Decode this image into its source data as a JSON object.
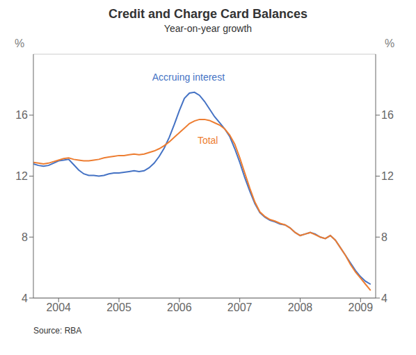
{
  "chart_data": {
    "type": "line",
    "title": "Credit and Charge Card Balances",
    "subtitle": "Year-on-year growth",
    "source": "Source: RBA",
    "ylabel": "%",
    "y2label": "%",
    "xlim": [
      2003.583,
      2009.25
    ],
    "xticks": [
      2004,
      2005,
      2006,
      2007,
      2008,
      2009
    ],
    "ylim": [
      4,
      20
    ],
    "yticks": [
      4,
      8,
      12,
      16
    ],
    "y2lim": [
      4,
      20
    ],
    "y2ticks": [
      4,
      8,
      12,
      16
    ],
    "grid": "y",
    "x": [
      2003.583,
      2003.667,
      2003.75,
      2003.833,
      2003.917,
      2004.0,
      2004.083,
      2004.167,
      2004.25,
      2004.333,
      2004.417,
      2004.5,
      2004.583,
      2004.667,
      2004.75,
      2004.833,
      2004.917,
      2005.0,
      2005.083,
      2005.167,
      2005.25,
      2005.333,
      2005.417,
      2005.5,
      2005.583,
      2005.667,
      2005.75,
      2005.833,
      2005.917,
      2006.0,
      2006.083,
      2006.167,
      2006.25,
      2006.333,
      2006.417,
      2006.5,
      2006.583,
      2006.667,
      2006.75,
      2006.833,
      2006.917,
      2007.0,
      2007.083,
      2007.167,
      2007.25,
      2007.333,
      2007.417,
      2007.5,
      2007.583,
      2007.667,
      2007.75,
      2007.833,
      2007.917,
      2008.0,
      2008.083,
      2008.167,
      2008.25,
      2008.333,
      2008.417,
      2008.5,
      2008.583,
      2008.667,
      2008.75,
      2008.833,
      2008.917,
      2009.0,
      2009.083,
      2009.167
    ],
    "series": [
      {
        "color": "#4472C4",
        "values": [
          12.8,
          12.7,
          12.65,
          12.7,
          12.85,
          13.0,
          13.05,
          13.1,
          12.75,
          12.4,
          12.15,
          12.05,
          12.05,
          12.0,
          12.05,
          12.15,
          12.2,
          12.2,
          12.25,
          12.3,
          12.35,
          12.3,
          12.35,
          12.55,
          12.85,
          13.3,
          13.85,
          14.55,
          15.4,
          16.3,
          17.1,
          17.45,
          17.5,
          17.3,
          16.9,
          16.4,
          15.9,
          15.5,
          15.1,
          14.6,
          13.8,
          12.9,
          11.9,
          11.0,
          10.2,
          9.6,
          9.3,
          9.1,
          9.0,
          8.85,
          8.8,
          8.6,
          8.3,
          8.1,
          8.2,
          8.3,
          8.2,
          8.0,
          7.9,
          8.1,
          7.8,
          7.3,
          6.8,
          6.3,
          5.8,
          5.4,
          5.1,
          4.9
        ]
      },
      {
        "color": "#ED7D31",
        "values": [
          12.9,
          12.85,
          12.8,
          12.85,
          12.95,
          13.05,
          13.15,
          13.2,
          13.1,
          13.05,
          13.0,
          13.0,
          13.05,
          13.1,
          13.2,
          13.25,
          13.3,
          13.35,
          13.35,
          13.4,
          13.45,
          13.4,
          13.45,
          13.55,
          13.65,
          13.8,
          14.0,
          14.25,
          14.55,
          14.85,
          15.15,
          15.45,
          15.62,
          15.72,
          15.72,
          15.65,
          15.5,
          15.35,
          15.1,
          14.7,
          14.1,
          13.2,
          12.2,
          11.2,
          10.3,
          9.65,
          9.35,
          9.15,
          9.05,
          8.9,
          8.8,
          8.6,
          8.3,
          8.1,
          8.2,
          8.3,
          8.15,
          8.0,
          7.9,
          8.1,
          7.8,
          7.3,
          6.8,
          6.2,
          5.7,
          5.3,
          4.9,
          4.5
        ]
      }
    ],
    "annotations": [
      {
        "text": "Accruing interest",
        "x": 2005.55,
        "y": 18.5,
        "color": "#4472C4"
      },
      {
        "text": "Total",
        "x": 2006.3,
        "y": 14.35,
        "color": "#ED7D31"
      }
    ]
  }
}
